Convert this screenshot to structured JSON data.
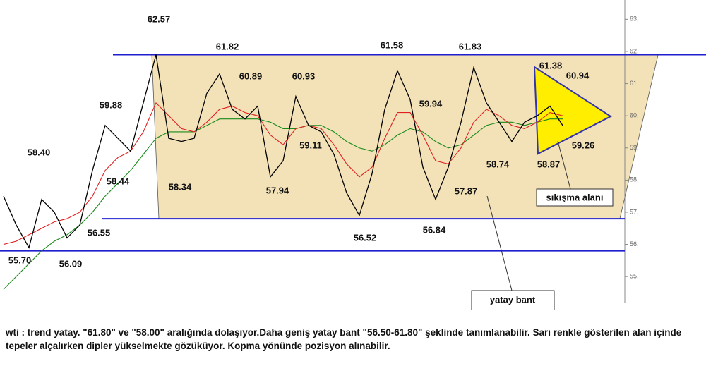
{
  "chart_data": {
    "type": "line",
    "series": [
      {
        "color": "#000000",
        "values": [
          57.5,
          56.6,
          55.9,
          57.4,
          57.0,
          56.2,
          56.6,
          58.3,
          59.7,
          59.3,
          58.9,
          60.4,
          61.9,
          59.3,
          59.2,
          59.3,
          60.7,
          61.3,
          60.2,
          59.9,
          60.3,
          58.1,
          58.6,
          60.6,
          59.7,
          59.5,
          58.8,
          57.6,
          56.9,
          58.2,
          60.2,
          61.4,
          60.5,
          58.4,
          57.4,
          58.4,
          59.8,
          61.5,
          60.4,
          59.8,
          59.2,
          59.8,
          60.0,
          60.3,
          59.7
        ]
      },
      {
        "color": "#e02020",
        "values": [
          56.0,
          56.1,
          56.3,
          56.5,
          56.7,
          56.8,
          57.0,
          57.5,
          58.3,
          58.7,
          58.9,
          59.5,
          60.4,
          60.0,
          59.6,
          59.5,
          59.8,
          60.2,
          60.3,
          60.1,
          60.0,
          59.4,
          59.1,
          59.6,
          59.7,
          59.6,
          59.1,
          58.5,
          58.1,
          58.4,
          59.3,
          60.1,
          60.1,
          59.4,
          58.6,
          58.5,
          59.0,
          59.8,
          60.2,
          60.0,
          59.7,
          59.6,
          59.8,
          60.1,
          60.0
        ]
      },
      {
        "color": "#1a8a1a",
        "values": [
          54.6,
          55.0,
          55.4,
          55.8,
          56.1,
          56.3,
          56.6,
          57.0,
          57.5,
          57.9,
          58.3,
          58.8,
          59.3,
          59.5,
          59.5,
          59.5,
          59.7,
          59.9,
          59.9,
          59.9,
          59.9,
          59.8,
          59.6,
          59.6,
          59.7,
          59.7,
          59.5,
          59.2,
          59.0,
          58.9,
          59.1,
          59.4,
          59.6,
          59.5,
          59.2,
          59.0,
          59.1,
          59.4,
          59.7,
          59.8,
          59.8,
          59.7,
          59.8,
          59.9,
          59.9
        ]
      }
    ],
    "ylim": [
      54.17,
      63.6
    ],
    "yticks": [
      {
        "value": 63,
        "label": "63,"
      },
      {
        "value": 62,
        "label": "62,"
      },
      {
        "value": 61,
        "label": "61,"
      },
      {
        "value": 60,
        "label": "60,"
      },
      {
        "value": 59,
        "label": "59,"
      },
      {
        "value": 58,
        "label": "58,"
      },
      {
        "value": 57,
        "label": "57,"
      },
      {
        "value": 56,
        "label": "56,"
      },
      {
        "value": 55,
        "label": "55,"
      }
    ],
    "levels": [
      61.9,
      56.8,
      55.8
    ],
    "level_color": "#1f1fd0",
    "annotations": [
      "62.57",
      "61.82",
      "61.58",
      "61.83",
      "61.38",
      "60.94",
      "60.89",
      "60.93",
      "59.88",
      "59.94",
      "58.40",
      "59.11",
      "59.26",
      "58.74",
      "58.87",
      "58.44",
      "58.34",
      "57.94",
      "57.87",
      "56.55",
      "56.84",
      "56.52",
      "55.70",
      "56.09"
    ],
    "callouts": [
      "sıkışma alanı",
      "yatay bant"
    ],
    "footnote": "wti : trend yatay. \"61.80\" ve \"58.00\" aralığında dolaşıyor.Daha geniş yatay bant \"56.50-61.80\" şeklinde tanımlanabilir. Sarı renkle gösterilen alan içinde tepeler alçalırken dipler yükselmekte gözüküyor. Kopma yönünde pozisyon alınabilir."
  }
}
